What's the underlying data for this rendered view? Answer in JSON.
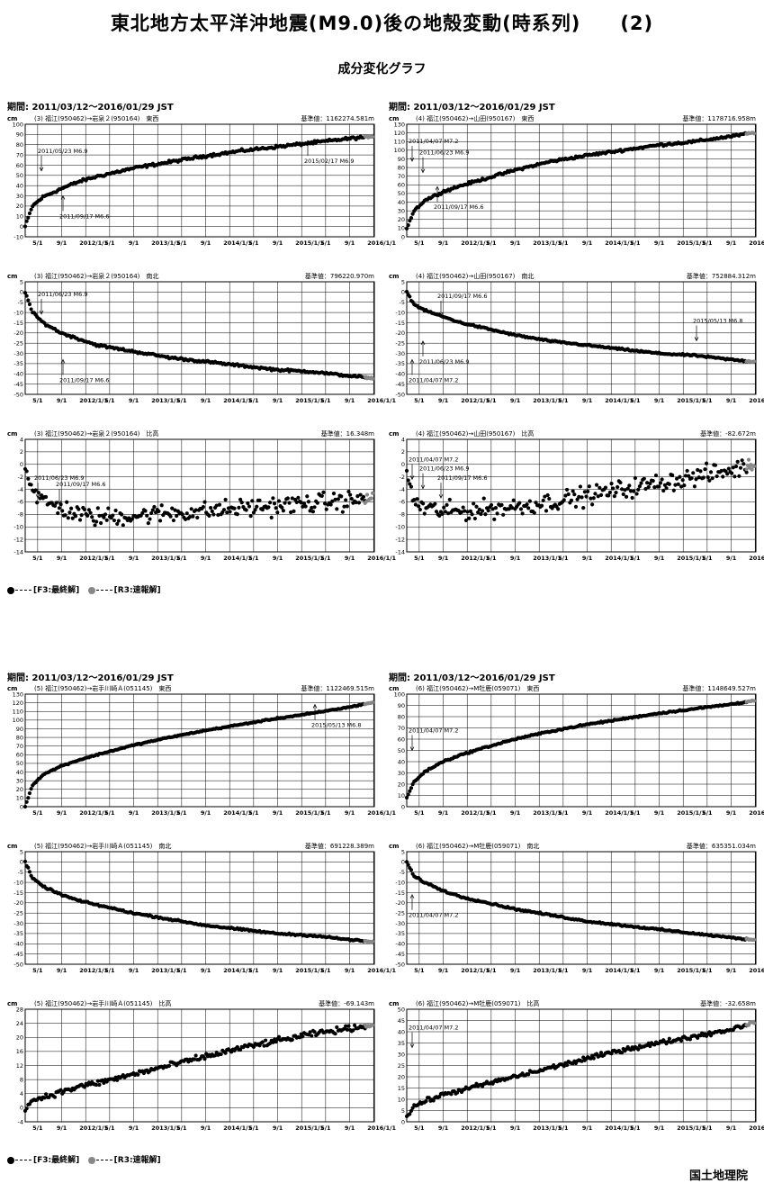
{
  "header": {
    "title": "東北地方太平洋沖地震(M9.0)後の地殻変動(時系列)　　(2)",
    "subtitle": "成分変化グラフ"
  },
  "sections": [
    {
      "period": "期間: 2011/03/12～2016/01/29 JST",
      "legend": {
        "final": "[F3:最終解]",
        "rapid": "[R3:速報解]",
        "final_color": "#000000",
        "rapid_color": "#888888"
      }
    },
    {
      "period": "期間: 2011/03/12～2016/01/29 JST",
      "legend": {
        "final": "[F3:最終解]",
        "rapid": "[R3:速報解]",
        "final_color": "#000000",
        "rapid_color": "#888888"
      }
    }
  ],
  "footer": {
    "organization": "国土地理院"
  },
  "chart_data": [
    {
      "type": "scatter",
      "title": "(3) 福江(950462)→岩泉２(950164)　東西",
      "baseline": "基準値：1162274.581m",
      "ylabel": "cm",
      "ylim": [
        -10,
        100
      ],
      "ytick_step": 10,
      "x_ticks": [
        "5/1",
        "9/1",
        "2012/1/1",
        "5/1",
        "9/1",
        "2013/1/1",
        "5/1",
        "9/1",
        "2014/1/1",
        "5/1",
        "9/1",
        "2015/1/1",
        "5/1",
        "9/1",
        "2016/1/1"
      ],
      "x": [
        0,
        0.1,
        0.25,
        0.5,
        0.75,
        1,
        1.5,
        2,
        2.5,
        3,
        3.5,
        4,
        4.5,
        4.8
      ],
      "y": [
        0,
        20,
        29,
        37,
        44,
        49,
        57,
        63,
        69,
        74,
        78,
        82,
        86,
        88
      ],
      "scatter": 2,
      "annotations": [
        {
          "text": "2011/05/23 M6.9",
          "x": 0.2,
          "y": 72,
          "dir": "down"
        },
        {
          "text": "2011/09/17 M6.6",
          "x": 0.5,
          "y": 8,
          "dir": "up"
        },
        {
          "text": "2015/02/17 M6.9",
          "x": 3.9,
          "y": 62,
          "dir": "up"
        }
      ]
    },
    {
      "type": "scatter",
      "title": "(4) 福江(950462)→山田(950167)　東西",
      "baseline": "基準値：1178716.958m",
      "ylabel": "cm",
      "ylim": [
        0,
        130
      ],
      "ytick_step": 10,
      "x_ticks": [
        "5/1",
        "9/1",
        "2012/1/1",
        "5/1",
        "9/1",
        "2013/1/1",
        "5/1",
        "9/1",
        "2014/1/1",
        "5/1",
        "9/1",
        "2015/1/1",
        "5/1",
        "9/1",
        "2016/1/1"
      ],
      "x": [
        0,
        0.1,
        0.25,
        0.5,
        0.75,
        1,
        1.5,
        2,
        2.5,
        3,
        3.5,
        4,
        4.5,
        4.8
      ],
      "y": [
        10,
        30,
        42,
        52,
        59,
        65,
        77,
        87,
        94,
        100,
        106,
        110,
        116,
        120
      ],
      "scatter": 2,
      "annotations": [
        {
          "text": "2011/04/07 M7.2",
          "x": 0.05,
          "y": 108,
          "dir": "down"
        },
        {
          "text": "2011/06/23 M6.9",
          "x": 0.2,
          "y": 95,
          "dir": "down"
        },
        {
          "text": "2011/09/17 M6.6",
          "x": 0.4,
          "y": 32,
          "dir": "up"
        }
      ]
    },
    {
      "type": "scatter",
      "title": "(3) 福江(950462)→岩泉２(950164)　南北",
      "baseline": "基準値：796220.970m",
      "ylabel": "cm",
      "ylim": [
        -50,
        5
      ],
      "ytick_step": 5,
      "x_ticks": [
        "5/1",
        "9/1",
        "2012/1/1",
        "5/1",
        "9/1",
        "2013/1/1",
        "5/1",
        "9/1",
        "2014/1/1",
        "5/1",
        "9/1",
        "2015/1/1",
        "5/1",
        "9/1",
        "2016/1/1"
      ],
      "x": [
        0,
        0.1,
        0.25,
        0.5,
        0.75,
        1,
        1.5,
        2,
        2.5,
        3,
        3.5,
        4,
        4.5,
        4.8
      ],
      "y": [
        0,
        -10,
        -15,
        -20,
        -23,
        -26,
        -29,
        -32,
        -34,
        -36,
        -38,
        -39,
        -41,
        -42
      ],
      "scatter": 0.8,
      "annotations": [
        {
          "text": "2011/06/23 M6.9",
          "x": 0.2,
          "y": -2,
          "dir": "down"
        },
        {
          "text": "2011/09/17 M6.6",
          "x": 0.5,
          "y": -44,
          "dir": "up"
        }
      ]
    },
    {
      "type": "scatter",
      "title": "(4) 福江(950462)→山田(950167)　南北",
      "baseline": "基準値：752884.312m",
      "ylabel": "cm",
      "ylim": [
        -50,
        5
      ],
      "ytick_step": 5,
      "x_ticks": [
        "5/1",
        "9/1",
        "2012/1/1",
        "5/1",
        "9/1",
        "2013/1/1",
        "5/1",
        "9/1",
        "2014/1/1",
        "5/1",
        "9/1",
        "2015/1/1",
        "5/1",
        "9/1",
        "2016/1/1"
      ],
      "x": [
        0,
        0.1,
        0.25,
        0.5,
        0.75,
        1,
        1.5,
        2,
        2.5,
        3,
        3.5,
        4,
        4.5,
        4.8
      ],
      "y": [
        0,
        -6,
        -9,
        -12,
        -15,
        -17,
        -21,
        -24,
        -26,
        -28,
        -30,
        -31,
        -33,
        -34
      ],
      "scatter": 0.6,
      "annotations": [
        {
          "text": "2011/09/17 M6.6",
          "x": 0.45,
          "y": -3,
          "dir": "down"
        },
        {
          "text": "2015/05/13 M6.8",
          "x": 4.0,
          "y": -15,
          "dir": "down"
        },
        {
          "text": "2011/06/23 M6.9",
          "x": 0.2,
          "y": -35,
          "dir": "up"
        },
        {
          "text": "2011/04/07 M7.2",
          "x": 0.05,
          "y": -44,
          "dir": "up"
        }
      ]
    },
    {
      "type": "scatter",
      "title": "(3) 福江(950462)→岩泉２(950164)　比高",
      "baseline": "基準値：16.348m",
      "ylabel": "cm",
      "ylim": [
        -14,
        4
      ],
      "ytick_step": 2,
      "x_ticks": [
        "5/1",
        "9/1",
        "2012/1/1",
        "5/1",
        "9/1",
        "2013/1/1",
        "5/1",
        "9/1",
        "2014/1/1",
        "5/1",
        "9/1",
        "2015/1/1",
        "5/1",
        "9/1",
        "2016/1/1"
      ],
      "x": [
        0,
        0.1,
        0.25,
        0.5,
        0.75,
        1,
        1.5,
        2,
        2.5,
        3,
        3.5,
        4,
        4.5,
        4.8
      ],
      "y": [
        0,
        -4,
        -6,
        -7,
        -8,
        -8.5,
        -8.2,
        -7.8,
        -7.5,
        -7,
        -6.6,
        -6.2,
        -5.8,
        -5.5
      ],
      "scatter": 2.2,
      "annotations": [
        {
          "text": "2011/06/23 M6.9",
          "x": 0.15,
          "y": -2.5,
          "dir": "down"
        },
        {
          "text": "2011/09/17 M6.6",
          "x": 0.45,
          "y": -3.5,
          "dir": "down"
        }
      ]
    },
    {
      "type": "scatter",
      "title": "(4) 福江(950462)→山田(950167)　比高",
      "baseline": "基準値：-82.672m",
      "ylabel": "cm",
      "ylim": [
        -14,
        4
      ],
      "ytick_step": 2,
      "x_ticks": [
        "5/1",
        "9/1",
        "2012/1/1",
        "5/1",
        "9/1",
        "2013/1/1",
        "5/1",
        "9/1",
        "2014/1/1",
        "5/1",
        "9/1",
        "2015/1/1",
        "5/1",
        "9/1",
        "2016/1/1"
      ],
      "x": [
        0,
        0.1,
        0.25,
        0.5,
        0.75,
        1,
        1.5,
        2,
        2.5,
        3,
        3.5,
        4,
        4.5,
        4.8
      ],
      "y": [
        -1,
        -6,
        -7,
        -7.5,
        -7.5,
        -7.3,
        -6.8,
        -6,
        -5,
        -4,
        -3,
        -2,
        -1,
        0
      ],
      "scatter": 2.2,
      "annotations": [
        {
          "text": "2011/04/07 M7.2",
          "x": 0.05,
          "y": 0.5,
          "dir": "down"
        },
        {
          "text": "2011/06/23 M6.9",
          "x": 0.2,
          "y": -1,
          "dir": "down"
        },
        {
          "text": "2011/09/17 M6.6",
          "x": 0.45,
          "y": -2.5,
          "dir": "down"
        }
      ]
    },
    {
      "type": "scatter",
      "title": "(5) 福江(950462)→岩手川崎Ａ(051145)　東西",
      "baseline": "基準値：1122469.515m",
      "ylabel": "cm",
      "ylim": [
        0,
        130
      ],
      "ytick_step": 10,
      "x_ticks": [
        "5/1",
        "9/1",
        "2012/1/1",
        "5/1",
        "9/1",
        "2013/1/1",
        "5/1",
        "9/1",
        "2014/1/1",
        "5/1",
        "9/1",
        "2015/1/1",
        "5/1",
        "9/1",
        "2016/1/1"
      ],
      "x": [
        0,
        0.1,
        0.25,
        0.5,
        0.75,
        1,
        1.5,
        2,
        2.5,
        3,
        3.5,
        4,
        4.5,
        4.8
      ],
      "y": [
        0,
        25,
        37,
        47,
        54,
        60,
        71,
        80,
        88,
        95,
        102,
        108,
        115,
        120
      ],
      "scatter": 1,
      "annotations": [
        {
          "text": "2015/05/13 M6.8",
          "x": 4.0,
          "y": 92,
          "dir": "up"
        }
      ]
    },
    {
      "type": "scatter",
      "title": "(6) 福江(950462)→M牡鹿(059071)　東西",
      "baseline": "基準値：1148649.527m",
      "ylabel": "cm",
      "ylim": [
        0,
        100
      ],
      "ytick_step": 10,
      "x_ticks": [
        "5/1",
        "9/1",
        "2012/1/1",
        "5/1",
        "9/1",
        "2013/1/1",
        "5/1",
        "9/1",
        "2014/1/1",
        "5/1",
        "9/1",
        "2015/1/1",
        "5/1",
        "9/1",
        "2016/1/1"
      ],
      "x": [
        0,
        0.1,
        0.25,
        0.5,
        0.75,
        1,
        1.5,
        2,
        2.5,
        3,
        3.5,
        4,
        4.5,
        4.8
      ],
      "y": [
        8,
        22,
        31,
        40,
        46,
        51,
        60,
        67,
        73,
        78,
        83,
        87,
        91,
        94
      ],
      "scatter": 1,
      "annotations": [
        {
          "text": "2011/04/07 M7.2",
          "x": 0.05,
          "y": 66,
          "dir": "down"
        }
      ]
    },
    {
      "type": "scatter",
      "title": "(5) 福江(950462)→岩手川崎Ａ(051145)　南北",
      "baseline": "基準値：691228.389m",
      "ylabel": "cm",
      "ylim": [
        -50,
        5
      ],
      "ytick_step": 5,
      "x_ticks": [
        "5/1",
        "9/1",
        "2012/1/1",
        "5/1",
        "9/1",
        "2013/1/1",
        "5/1",
        "9/1",
        "2014/1/1",
        "5/1",
        "9/1",
        "2015/1/1",
        "5/1",
        "9/1",
        "2016/1/1"
      ],
      "x": [
        0,
        0.1,
        0.25,
        0.5,
        0.75,
        1,
        1.5,
        2,
        2.5,
        3,
        3.5,
        4,
        4.5,
        4.8
      ],
      "y": [
        0,
        -8,
        -12,
        -16,
        -19,
        -21,
        -25,
        -28,
        -31,
        -33,
        -35,
        -36,
        -38,
        -39
      ],
      "scatter": 0.6,
      "annotations": []
    },
    {
      "type": "scatter",
      "title": "(6) 福江(950462)→M牡鹿(059071)　南北",
      "baseline": "基準値：635351.034m",
      "ylabel": "cm",
      "ylim": [
        -50,
        5
      ],
      "ytick_step": 5,
      "x_ticks": [
        "5/1",
        "9/1",
        "2012/1/1",
        "5/1",
        "9/1",
        "2013/1/1",
        "5/1",
        "9/1",
        "2014/1/1",
        "5/1",
        "9/1",
        "2015/1/1",
        "5/1",
        "9/1",
        "2016/1/1"
      ],
      "x": [
        0,
        0.1,
        0.25,
        0.5,
        0.75,
        1,
        1.5,
        2,
        2.5,
        3,
        3.5,
        4,
        4.5,
        4.8
      ],
      "y": [
        0,
        -7,
        -10,
        -14,
        -17,
        -19,
        -23,
        -26,
        -29,
        -31,
        -33,
        -35,
        -37,
        -38
      ],
      "scatter": 0.6,
      "annotations": [
        {
          "text": "2011/04/07 M7.2",
          "x": 0.05,
          "y": -27,
          "dir": "up"
        }
      ]
    },
    {
      "type": "scatter",
      "title": "(5) 福江(950462)→岩手川崎Ａ(051145)　比高",
      "baseline": "基準値：-69.143m",
      "ylabel": "cm",
      "ylim": [
        -4,
        28
      ],
      "ytick_step": 4,
      "x_ticks": [
        "5/1",
        "9/1",
        "2012/1/1",
        "5/1",
        "9/1",
        "2013/1/1",
        "5/1",
        "9/1",
        "2014/1/1",
        "5/1",
        "9/1",
        "2015/1/1",
        "5/1",
        "9/1",
        "2016/1/1"
      ],
      "x": [
        0,
        0.1,
        0.25,
        0.5,
        0.75,
        1,
        1.5,
        2,
        2.5,
        3,
        3.5,
        4,
        4.5,
        4.8
      ],
      "y": [
        0,
        2,
        3,
        4.5,
        6,
        7,
        9.5,
        12,
        14.5,
        17,
        19,
        21,
        22.5,
        23.5
      ],
      "scatter": 1.2,
      "annotations": []
    },
    {
      "type": "scatter",
      "title": "(6) 福江(950462)→M牡鹿(059071)　比高",
      "baseline": "基準値：-32.658m",
      "ylabel": "cm",
      "ylim": [
        0,
        50
      ],
      "ytick_step": 5,
      "x_ticks": [
        "5/1",
        "9/1",
        "2012/1/1",
        "5/1",
        "9/1",
        "2013/1/1",
        "5/1",
        "9/1",
        "2014/1/1",
        "5/1",
        "9/1",
        "2015/1/1",
        "5/1",
        "9/1",
        "2016/1/1"
      ],
      "x": [
        0,
        0.1,
        0.25,
        0.5,
        0.75,
        1,
        1.5,
        2,
        2.5,
        3,
        3.5,
        4,
        4.5,
        4.8
      ],
      "y": [
        2,
        7,
        9,
        12,
        14,
        16,
        20,
        24,
        28,
        32,
        35,
        38,
        41,
        44
      ],
      "scatter": 1.5,
      "annotations": [
        {
          "text": "2011/04/07 M7.2",
          "x": 0.05,
          "y": 41,
          "dir": "down"
        }
      ]
    }
  ]
}
